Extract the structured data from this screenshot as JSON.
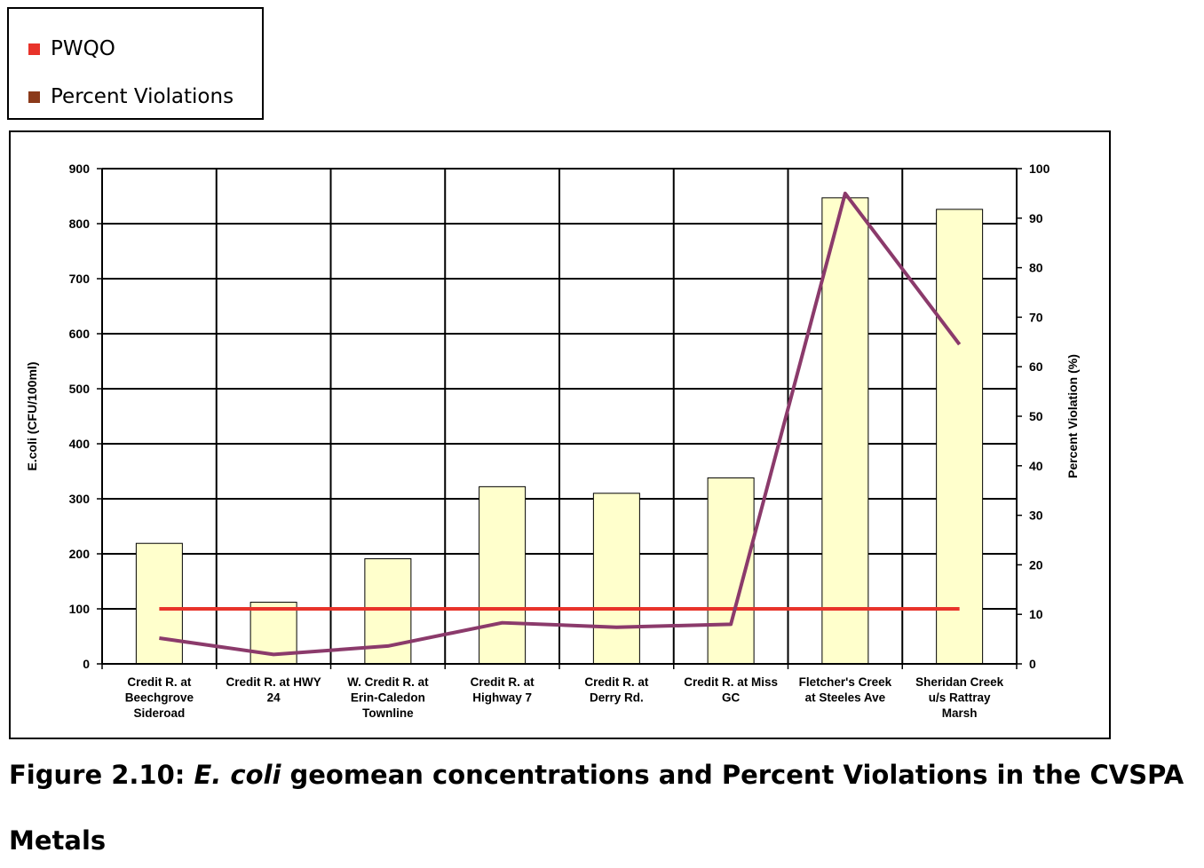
{
  "legend": {
    "items": [
      {
        "label": "PWQO",
        "color": "#e8332a"
      },
      {
        "label": "Percent Violations",
        "color": "#8b3a1a"
      }
    ]
  },
  "chart_data": {
    "type": "bar",
    "categories": [
      "Credit R. at Beechgrove Sideroad",
      "Credit R. at HWY 24",
      "W. Credit R. at Erin-Caledon Townline",
      "Credit R. at Highway 7",
      "Credit R. at Derry Rd.",
      "Credit R. at Miss GC",
      "Fletcher's Creek at Steeles Ave",
      "Sheridan Creek u/s Rattray Marsh"
    ],
    "category_lines": [
      [
        "Credit R. at",
        "Beechgrove",
        "Sideroad"
      ],
      [
        "Credit R. at HWY",
        "24"
      ],
      [
        "W. Credit R. at",
        "Erin-Caledon",
        "Townline"
      ],
      [
        "Credit R. at",
        "Highway 7"
      ],
      [
        "Credit R. at",
        "Derry Rd."
      ],
      [
        "Credit R. at Miss",
        "GC"
      ],
      [
        "Fletcher's Creek",
        "at Steeles Ave"
      ],
      [
        "Sheridan Creek",
        "u/s Rattray",
        "Marsh"
      ]
    ],
    "series": [
      {
        "values": [
          219,
          112,
          191,
          322,
          310,
          338,
          847,
          826
        ],
        "axis": "left",
        "kind": "bar",
        "color": "#ffffcc"
      },
      {
        "name": "PWQO",
        "values": [
          100,
          100,
          100,
          100,
          100,
          100,
          100,
          100
        ],
        "axis": "left",
        "kind": "line",
        "color": "#e8332a"
      },
      {
        "name": "Percent Violations",
        "values": [
          5.2,
          1.9,
          3.6,
          8.3,
          7.4,
          8.0,
          95.0,
          64.5
        ],
        "axis": "right",
        "kind": "line",
        "color": "#8b3a6b"
      }
    ],
    "ylabel": "E.coli (CFU/100ml)",
    "ylabel_right": "Percent Violation (%)",
    "ylim": [
      0,
      900
    ],
    "ylim_right": [
      0,
      100
    ],
    "yticks": [
      "0",
      "100",
      "200",
      "300",
      "400",
      "500",
      "600",
      "700",
      "800",
      "900"
    ],
    "yticks_right": [
      "0",
      "10",
      "20",
      "30",
      "40",
      "50",
      "60",
      "70",
      "80",
      "90",
      "100"
    ],
    "grid": true
  },
  "caption": {
    "prefix": "Figure 2.10:  ",
    "italic": "E. coli",
    "suffix": " geomean concentrations and Percent Violations in the CVSPA"
  },
  "section_heading": "Metals"
}
